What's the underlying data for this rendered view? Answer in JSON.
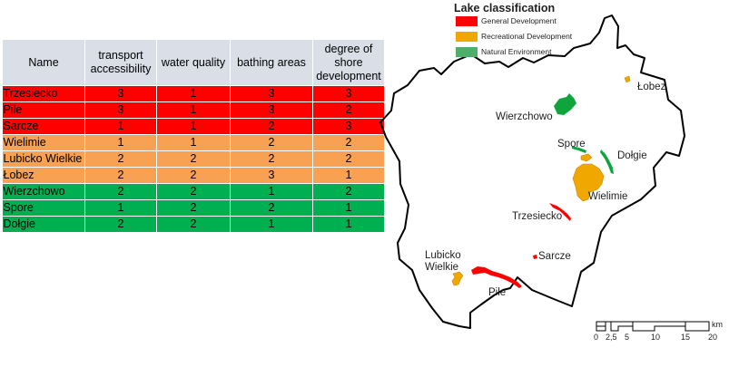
{
  "table": {
    "headers": [
      "Name",
      "transport accessibility",
      "water quality",
      "bathing areas",
      "degree of shore development"
    ],
    "rows": [
      {
        "name": "Trzesiecko",
        "values": [
          "3",
          "1",
          "3",
          "3"
        ],
        "cls": "general"
      },
      {
        "name": "Pile",
        "values": [
          "3",
          "1",
          "3",
          "2"
        ],
        "cls": "general"
      },
      {
        "name": "Sarcze",
        "values": [
          "1",
          "1",
          "2",
          "3"
        ],
        "cls": "general"
      },
      {
        "name": "Wielimie",
        "values": [
          "1",
          "1",
          "2",
          "2"
        ],
        "cls": "recreational"
      },
      {
        "name": "Lubicko Wielkie",
        "values": [
          "2",
          "2",
          "2",
          "2"
        ],
        "cls": "recreational"
      },
      {
        "name": "Łobez",
        "values": [
          "2",
          "2",
          "3",
          "1"
        ],
        "cls": "recreational"
      },
      {
        "name": "Wierzchowo",
        "values": [
          "2",
          "2",
          "1",
          "2"
        ],
        "cls": "natural"
      },
      {
        "name": "Spore",
        "values": [
          "1",
          "2",
          "2",
          "1"
        ],
        "cls": "natural"
      },
      {
        "name": "Dołgie",
        "values": [
          "2",
          "2",
          "1",
          "1"
        ],
        "cls": "natural"
      }
    ]
  },
  "colors": {
    "general": "#ff0000",
    "recreational": "#f9a152",
    "natural": "#00b050",
    "map_general": "#ff0000",
    "map_recreational": "#f0a800",
    "map_natural": "#0fa43c",
    "legend_natural": "#4daf6a"
  },
  "legend": {
    "title": "Lake classification",
    "items": [
      {
        "key": "general",
        "label": "General Development"
      },
      {
        "key": "recreational",
        "label": "Recreational Development"
      },
      {
        "key": "natural",
        "label": "Natural Environment"
      }
    ]
  },
  "map_labels": {
    "lobez": "Łobez",
    "wierzchowo": "Wierzchowo",
    "spore": "Spore",
    "dolgie": "Dołgie",
    "wielimie": "Wielimie",
    "trzesiecko": "Trzesiecko",
    "sarcze": "Sarcze",
    "lubicko_1": "Lubicko",
    "lubicko_2": "Wielkie",
    "pile": "Pile"
  },
  "scale": {
    "unit": "km",
    "ticks": [
      "0",
      "2,5",
      "5",
      "10",
      "15",
      "20"
    ]
  }
}
